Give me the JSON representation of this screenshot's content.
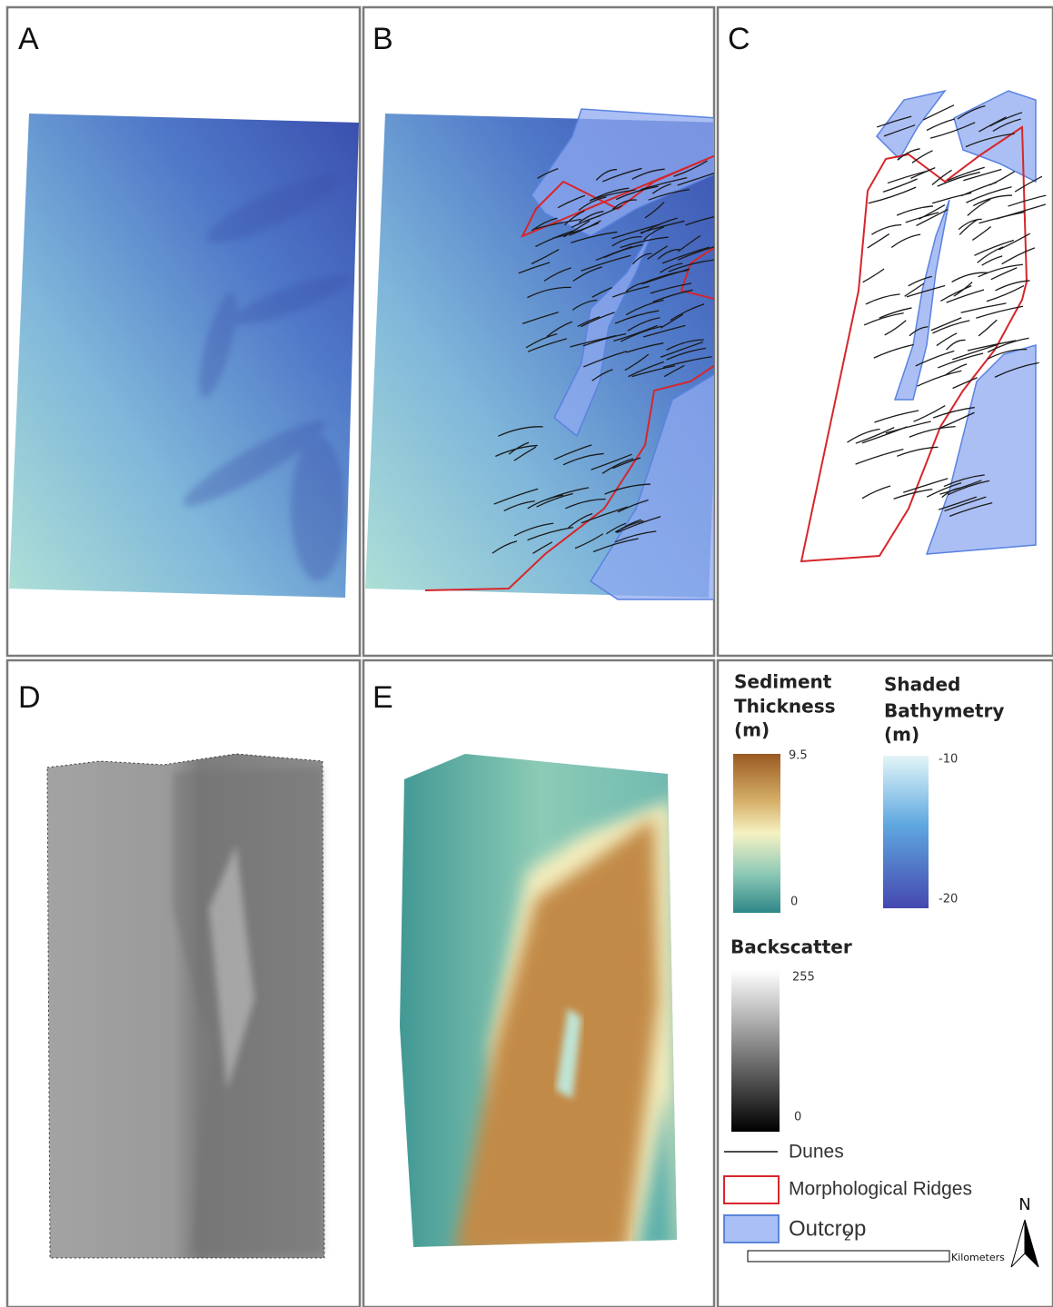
{
  "panels": [
    {
      "label": "A"
    },
    {
      "label": "B"
    },
    {
      "label": "C"
    },
    {
      "label": "D"
    },
    {
      "label": "E"
    }
  ],
  "legend": {
    "sediment_thickness": {
      "title_lines": [
        "Sediment",
        "Thickness",
        "(m)"
      ],
      "max": 9.5,
      "min": 0
    },
    "shaded_bathymetry": {
      "title_lines": [
        "Shaded",
        "Bathymetry",
        "(m)"
      ],
      "max": -10,
      "min": -20
    },
    "backscatter": {
      "title": "Backscatter",
      "max": 255,
      "min": 0
    },
    "items": [
      "Dunes",
      "Morphological Ridges",
      "Outcrop"
    ],
    "north": "N",
    "scale_value": 2,
    "scale_unit": "Kilometers"
  }
}
